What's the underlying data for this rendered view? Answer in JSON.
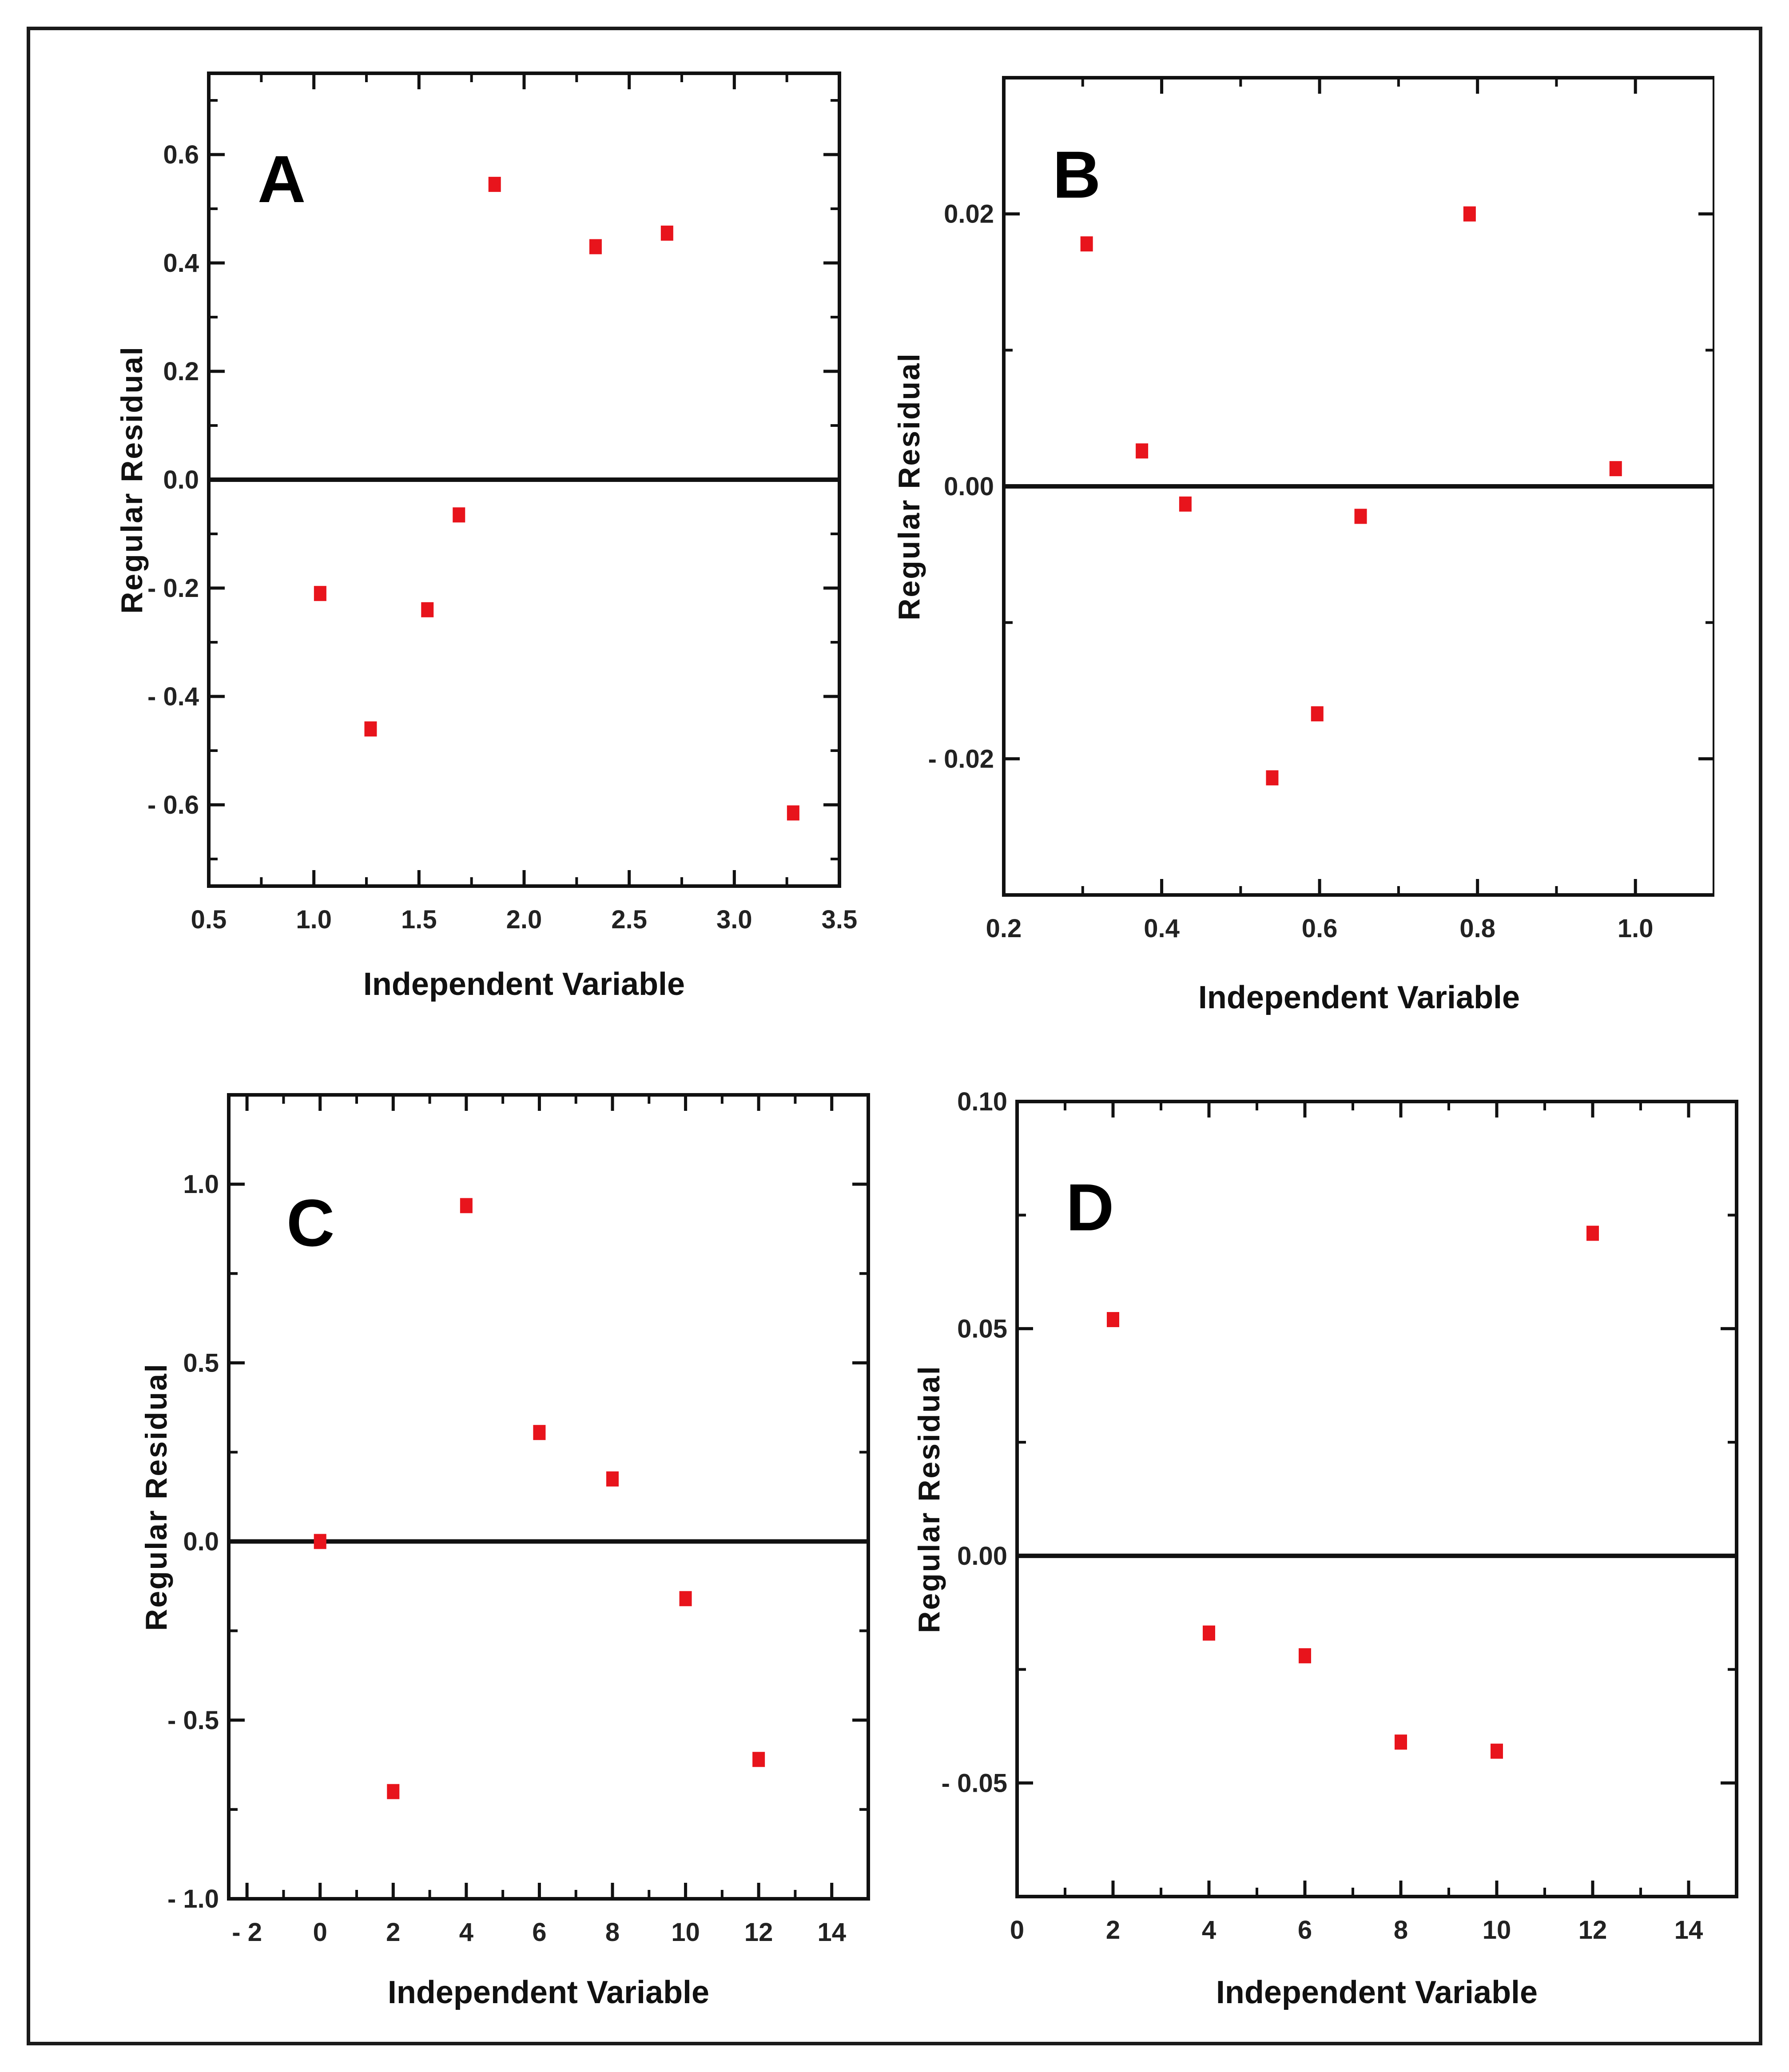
{
  "chart_data": [
    {
      "type": "scatter",
      "label": "A",
      "xlabel": "Independent Variable",
      "ylabel": "Regular Residual",
      "xlim": [
        0.5,
        3.5
      ],
      "ylim": [
        -0.75,
        0.75
      ],
      "xticks": [
        0.5,
        1.0,
        1.5,
        2.0,
        2.5,
        3.0,
        3.5
      ],
      "xtick_labels": [
        "0.5",
        "1.0",
        "1.5",
        "2.0",
        "2.5",
        "3.0",
        "3.5"
      ],
      "yticks": [
        0.6,
        0.4,
        0.2,
        0.0,
        -0.2,
        -0.4,
        -0.6
      ],
      "ytick_labels": [
        "0.6",
        "0.4",
        "0.2",
        "0.0",
        "- 0.2",
        "- 0.4",
        "- 0.6"
      ],
      "zero_line": true,
      "points": [
        {
          "x": 1.03,
          "y": -0.21
        },
        {
          "x": 1.27,
          "y": -0.46
        },
        {
          "x": 1.54,
          "y": -0.24
        },
        {
          "x": 1.69,
          "y": -0.065
        },
        {
          "x": 1.86,
          "y": 0.545
        },
        {
          "x": 2.34,
          "y": 0.43
        },
        {
          "x": 2.68,
          "y": 0.455
        },
        {
          "x": 3.28,
          "y": -0.615
        }
      ]
    },
    {
      "type": "scatter",
      "label": "B",
      "xlabel": "Independent Variable",
      "ylabel": "Regular Residual",
      "xlim": [
        0.2,
        1.1
      ],
      "ylim": [
        -0.03,
        0.03
      ],
      "xticks": [
        0.2,
        0.4,
        0.6,
        0.8,
        1.0
      ],
      "xtick_labels": [
        "0.2",
        "0.4",
        "0.6",
        "0.8",
        "1.0"
      ],
      "yticks": [
        0.02,
        0.0,
        -0.02
      ],
      "ytick_labels": [
        "0.02",
        "0.00",
        "- 0.02"
      ],
      "zero_line": true,
      "points": [
        {
          "x": 0.305,
          "y": 0.0178
        },
        {
          "x": 0.375,
          "y": 0.0026
        },
        {
          "x": 0.43,
          "y": -0.0013
        },
        {
          "x": 0.54,
          "y": -0.0214
        },
        {
          "x": 0.597,
          "y": -0.0167
        },
        {
          "x": 0.652,
          "y": -0.0022
        },
        {
          "x": 0.79,
          "y": 0.02
        },
        {
          "x": 0.975,
          "y": 0.0013
        }
      ]
    },
    {
      "type": "scatter",
      "label": "C",
      "xlabel": "Independent Variable",
      "ylabel": "Regular Residual",
      "xlim": [
        -2.5,
        15
      ],
      "ylim": [
        -1.0,
        1.25
      ],
      "xticks": [
        -2,
        0,
        2,
        4,
        6,
        8,
        10,
        12,
        14
      ],
      "xtick_labels": [
        "- 2",
        "0",
        "2",
        "4",
        "6",
        "8",
        "10",
        "12",
        "14"
      ],
      "yticks": [
        1.0,
        0.5,
        0.0,
        -0.5,
        -1.0
      ],
      "ytick_labels": [
        "1.0",
        "0.5",
        "0.0",
        "- 0.5",
        "- 1.0"
      ],
      "zero_line": true,
      "points": [
        {
          "x": 0,
          "y": 0.0
        },
        {
          "x": 2,
          "y": -0.7
        },
        {
          "x": 4,
          "y": 0.94
        },
        {
          "x": 6,
          "y": 0.305
        },
        {
          "x": 8,
          "y": 0.175
        },
        {
          "x": 10,
          "y": -0.16
        },
        {
          "x": 12,
          "y": -0.61
        }
      ]
    },
    {
      "type": "scatter",
      "label": "D",
      "xlabel": "Independent Variable",
      "ylabel": "Regular Residual",
      "xlim": [
        0,
        15
      ],
      "ylim": [
        -0.075,
        0.1
      ],
      "xticks": [
        0,
        2,
        4,
        6,
        8,
        10,
        12,
        14
      ],
      "xtick_labels": [
        "0",
        "2",
        "4",
        "6",
        "8",
        "10",
        "12",
        "14"
      ],
      "yticks": [
        0.1,
        0.05,
        0.0,
        -0.05
      ],
      "ytick_labels": [
        "0.10",
        "0.05",
        "0.00",
        "- 0.05"
      ],
      "zero_line": true,
      "points": [
        {
          "x": 2,
          "y": 0.052
        },
        {
          "x": 4,
          "y": -0.017
        },
        {
          "x": 6,
          "y": -0.022
        },
        {
          "x": 8,
          "y": -0.041
        },
        {
          "x": 10,
          "y": -0.043
        },
        {
          "x": 12,
          "y": 0.071
        }
      ]
    }
  ],
  "colors": {
    "marker": "#e8141c",
    "axis": "#111111"
  }
}
